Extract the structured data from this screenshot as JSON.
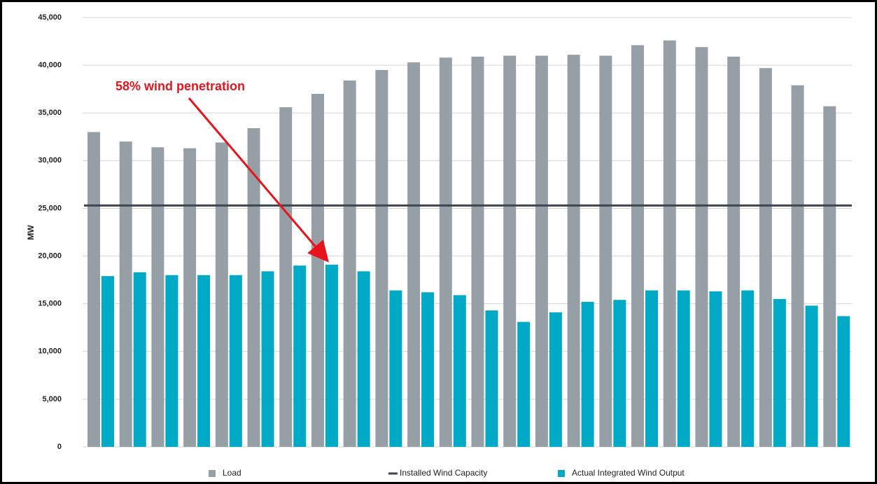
{
  "chart_data": {
    "type": "bar",
    "categories": [
      null,
      null,
      null,
      null,
      null,
      null,
      null,
      null,
      null,
      null,
      null,
      null,
      null,
      null,
      null,
      null,
      null,
      null,
      null,
      null,
      null,
      null,
      null,
      null
    ],
    "ylabel": "MW",
    "ylim": [
      0,
      45000
    ],
    "yticks": [
      {
        "value": 0,
        "label": "0"
      },
      {
        "value": 5000,
        "label": "5,000"
      },
      {
        "value": 10000,
        "label": "10,000"
      },
      {
        "value": 15000,
        "label": "15,000"
      },
      {
        "value": 20000,
        "label": "20,000"
      },
      {
        "value": 25000,
        "label": "25,000"
      },
      {
        "value": 30000,
        "label": "30,000"
      },
      {
        "value": 35000,
        "label": "35,000"
      },
      {
        "value": 40000,
        "label": "40,000"
      },
      {
        "value": 45000,
        "label": "45,000"
      }
    ],
    "grid": true,
    "legend": "bottom",
    "series": [
      {
        "name": "Load",
        "color": "#979fa6",
        "values": [
          33000,
          32000,
          31400,
          31300,
          31900,
          33400,
          35600,
          37000,
          38400,
          39500,
          40300,
          40800,
          40900,
          41000,
          41000,
          41100,
          41000,
          42100,
          42600,
          41900,
          40900,
          39700,
          37900,
          35700
        ]
      },
      {
        "name": "Installed Wind Capacity",
        "color": "#3c4650",
        "value": 25300
      },
      {
        "name": "Actual Integrated Wind Output",
        "color": "#00a9c5",
        "values": [
          17900,
          18300,
          18000,
          18000,
          18000,
          18400,
          19000,
          19100,
          18400,
          16400,
          16200,
          15900,
          14300,
          13100,
          14100,
          15200,
          15400,
          16400,
          16400,
          16300,
          16400,
          15500,
          14800,
          13700
        ]
      }
    ],
    "annotation": "58% wind penetration"
  }
}
